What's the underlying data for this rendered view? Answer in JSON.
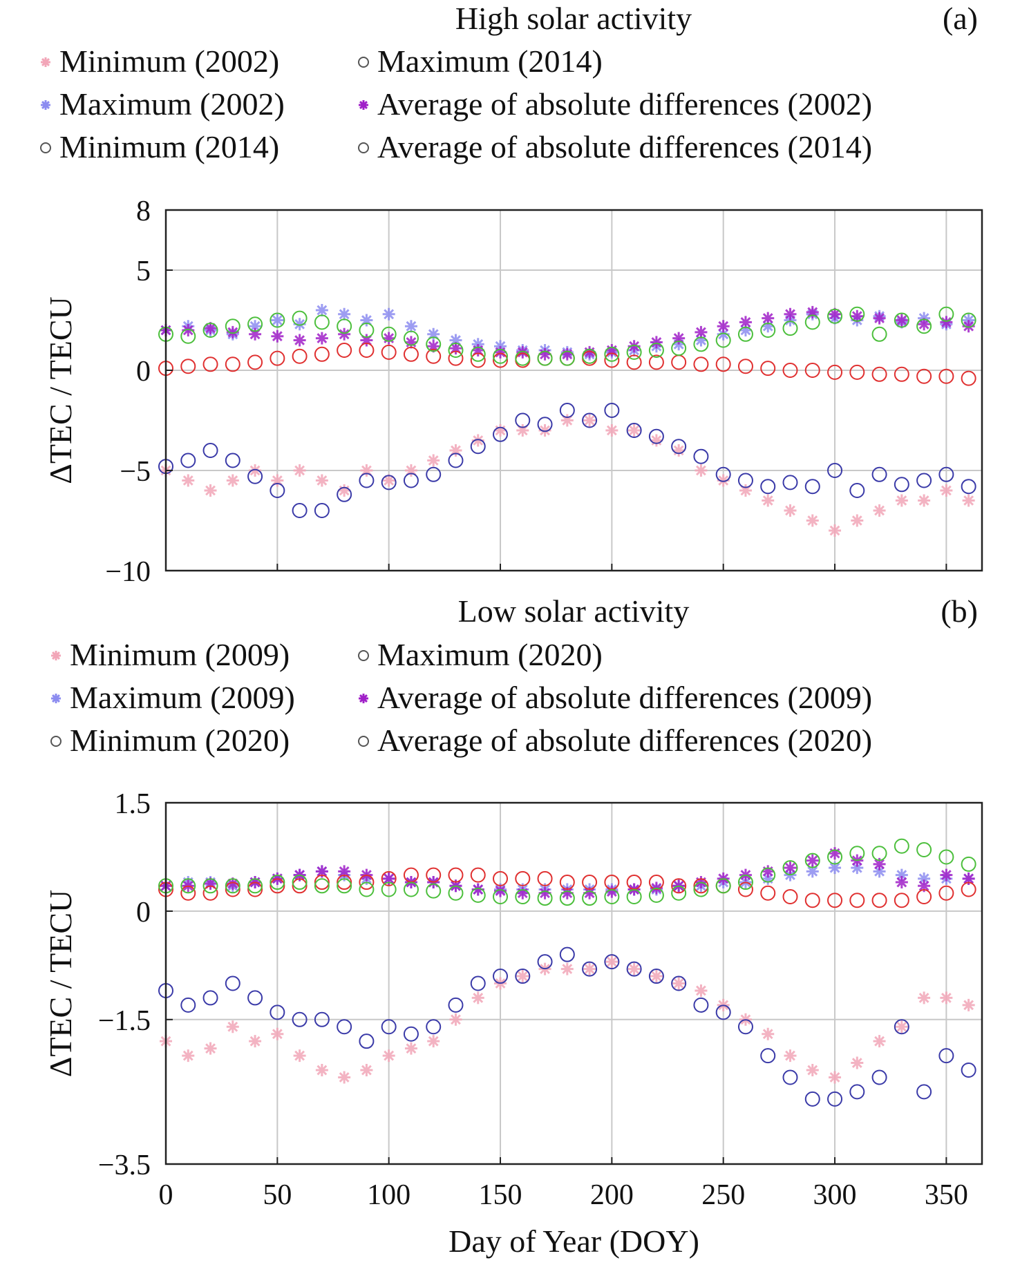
{
  "chart_data": [
    {
      "type": "scatter",
      "title": "High solar activity",
      "panel_label": "(a)",
      "xlabel": "",
      "ylabel": "ΔTEC / TECU",
      "xlim": [
        0,
        366
      ],
      "ylim": [
        -10,
        8
      ],
      "yticks": [
        8,
        5,
        0,
        -5,
        -10
      ],
      "ytick_labels": [
        "8",
        "5",
        "0",
        "−5",
        "−10"
      ],
      "xticks": [
        0,
        50,
        100,
        150,
        200,
        250,
        300,
        350
      ],
      "grid": true,
      "legend_position": "top",
      "x": [
        0,
        10,
        20,
        30,
        40,
        50,
        60,
        70,
        80,
        90,
        100,
        110,
        120,
        130,
        140,
        150,
        160,
        170,
        180,
        190,
        200,
        210,
        220,
        230,
        240,
        250,
        260,
        270,
        280,
        290,
        300,
        310,
        320,
        330,
        340,
        350,
        360
      ],
      "series": [
        {
          "name": "Minimum (2002)",
          "marker": "star",
          "color": "#f2a6b8",
          "values": [
            -5,
            -5.5,
            -6,
            -5.5,
            -5,
            -5.5,
            -5,
            -5.5,
            -6,
            -5,
            -5.5,
            -5,
            -4.5,
            -4,
            -3.5,
            -3,
            -3,
            -3,
            -2.5,
            -2.5,
            -3,
            -3,
            -3.5,
            -4,
            -5,
            -5.5,
            -6,
            -6.5,
            -7,
            -7.5,
            -8,
            -7.5,
            -7,
            -6.5,
            -6.5,
            -6,
            -6.5
          ]
        },
        {
          "name": "Maximum (2002)",
          "marker": "star",
          "color": "#8c8cf0",
          "values": [
            2,
            2.2,
            2,
            1.8,
            2.2,
            2.5,
            2.3,
            3,
            2.8,
            2.5,
            2.8,
            2.2,
            1.8,
            1.5,
            1.3,
            1.2,
            1,
            1,
            0.9,
            0.8,
            0.9,
            1,
            1.2,
            1.3,
            1.5,
            1.8,
            2,
            2.2,
            2.5,
            2.8,
            2.6,
            2.5,
            2.7,
            2.4,
            2.6,
            2.3,
            2.5
          ]
        },
        {
          "name": "Average of absolute differences (2002)",
          "marker": "star",
          "color": "#a020c8",
          "values": [
            2,
            2,
            2.1,
            1.9,
            1.8,
            1.7,
            1.5,
            1.6,
            1.8,
            1.5,
            1.6,
            1.4,
            1.2,
            1.1,
            1,
            0.9,
            0.9,
            0.8,
            0.8,
            0.9,
            1,
            1.2,
            1.4,
            1.6,
            1.9,
            2.2,
            2.4,
            2.6,
            2.8,
            2.9,
            2.8,
            2.7,
            2.6,
            2.5,
            2.3,
            2.4,
            2.2
          ]
        },
        {
          "name": "Minimum (2014)",
          "marker": "circle",
          "color": "#3a3aa8",
          "values": [
            -4.8,
            -4.5,
            -4,
            -4.5,
            -5.3,
            -6,
            -7,
            -7,
            -6.2,
            -5.5,
            -5.6,
            -5.5,
            -5.2,
            -4.5,
            -3.8,
            -3.2,
            -2.5,
            -2.7,
            -2,
            -2.5,
            -2,
            -3,
            -3.3,
            -3.8,
            -4.3,
            -5.2,
            -5.5,
            -5.8,
            -5.6,
            -5.8,
            -5,
            -6,
            -5.2,
            -5.7,
            -5.5,
            -5.2,
            -5.8
          ]
        },
        {
          "name": "Maximum (2014)",
          "marker": "circle",
          "color": "#e03030",
          "values": [
            0.1,
            0.2,
            0.3,
            0.3,
            0.4,
            0.6,
            0.7,
            0.8,
            1,
            1,
            0.9,
            0.8,
            0.7,
            0.6,
            0.5,
            0.5,
            0.5,
            0.6,
            0.6,
            0.6,
            0.5,
            0.4,
            0.4,
            0.4,
            0.3,
            0.3,
            0.2,
            0.1,
            0,
            0,
            -0.1,
            -0.1,
            -0.2,
            -0.2,
            -0.3,
            -0.3,
            -0.4
          ]
        },
        {
          "name": "Average of absolute differences (2014)",
          "marker": "circle",
          "color": "#4cbf3c",
          "values": [
            1.8,
            1.7,
            2,
            2.2,
            2.3,
            2.5,
            2.6,
            2.4,
            2.2,
            2,
            1.8,
            1.6,
            1.3,
            1,
            0.8,
            0.7,
            0.6,
            0.6,
            0.6,
            0.7,
            0.8,
            0.9,
            1,
            1.1,
            1.3,
            1.5,
            1.8,
            2,
            2.1,
            2.4,
            2.7,
            2.8,
            1.8,
            2.5,
            2.2,
            2.8,
            2.5
          ]
        }
      ]
    },
    {
      "type": "scatter",
      "title": "Low solar activity",
      "panel_label": "(b)",
      "xlabel": "Day of Year (DOY)",
      "ylabel": "ΔTEC / TECU",
      "xlim": [
        0,
        366
      ],
      "ylim": [
        -3.5,
        1.5
      ],
      "yticks": [
        1.5,
        0,
        -1.5,
        -3.5
      ],
      "ytick_labels": [
        "1.5",
        "0",
        "−1.5",
        "−3.5"
      ],
      "xticks": [
        0,
        50,
        100,
        150,
        200,
        250,
        300,
        350
      ],
      "xtick_labels": [
        "0",
        "50",
        "100",
        "150",
        "200",
        "250",
        "300",
        "350"
      ],
      "grid": true,
      "legend_position": "top",
      "x": [
        0,
        10,
        20,
        30,
        40,
        50,
        60,
        70,
        80,
        90,
        100,
        110,
        120,
        130,
        140,
        150,
        160,
        170,
        180,
        190,
        200,
        210,
        220,
        230,
        240,
        250,
        260,
        270,
        280,
        290,
        300,
        310,
        320,
        330,
        340,
        350,
        360
      ],
      "series": [
        {
          "name": "Minimum (2009)",
          "marker": "star",
          "color": "#f2a6b8",
          "values": [
            -1.8,
            -2,
            -1.9,
            -1.6,
            -1.8,
            -1.7,
            -2,
            -2.2,
            -2.3,
            -2.2,
            -2,
            -1.9,
            -1.8,
            -1.5,
            -1.2,
            -1,
            -0.9,
            -0.8,
            -0.8,
            -0.8,
            -0.7,
            -0.8,
            -0.9,
            -1,
            -1.1,
            -1.3,
            -1.5,
            -1.7,
            -2,
            -2.2,
            -2.3,
            -2.1,
            -1.8,
            -1.6,
            -1.2,
            -1.2,
            -1.3
          ]
        },
        {
          "name": "Maximum (2009)",
          "marker": "star",
          "color": "#8c8cf0",
          "values": [
            0.35,
            0.4,
            0.4,
            0.35,
            0.4,
            0.45,
            0.5,
            0.55,
            0.5,
            0.45,
            0.45,
            0.4,
            0.4,
            0.35,
            0.3,
            0.3,
            0.3,
            0.3,
            0.3,
            0.3,
            0.3,
            0.3,
            0.3,
            0.35,
            0.35,
            0.4,
            0.4,
            0.45,
            0.5,
            0.55,
            0.6,
            0.6,
            0.55,
            0.5,
            0.45,
            0.45,
            0.45
          ]
        },
        {
          "name": "Average of absolute differences (2009)",
          "marker": "star",
          "color": "#a020c8",
          "values": [
            0.35,
            0.35,
            0.38,
            0.38,
            0.4,
            0.45,
            0.5,
            0.55,
            0.55,
            0.5,
            0.45,
            0.4,
            0.4,
            0.35,
            0.3,
            0.28,
            0.25,
            0.25,
            0.25,
            0.25,
            0.27,
            0.3,
            0.32,
            0.35,
            0.4,
            0.45,
            0.5,
            0.55,
            0.6,
            0.7,
            0.8,
            0.7,
            0.65,
            0.4,
            0.35,
            0.5,
            0.45
          ]
        },
        {
          "name": "Minimum (2020)",
          "marker": "circle",
          "color": "#3a3aa8",
          "values": [
            -1.1,
            -1.3,
            -1.2,
            -1,
            -1.2,
            -1.4,
            -1.5,
            -1.5,
            -1.6,
            -1.8,
            -1.6,
            -1.7,
            -1.6,
            -1.3,
            -1,
            -0.9,
            -0.9,
            -0.7,
            -0.6,
            -0.8,
            -0.7,
            -0.8,
            -0.9,
            -1,
            -1.3,
            -1.4,
            -1.6,
            -2,
            -2.3,
            -2.6,
            -2.6,
            -2.5,
            -2.3,
            -1.6,
            -2.5,
            -2,
            -2.2
          ]
        },
        {
          "name": "Maximum (2020)",
          "marker": "circle",
          "color": "#e03030",
          "values": [
            0.3,
            0.25,
            0.25,
            0.3,
            0.3,
            0.35,
            0.35,
            0.4,
            0.4,
            0.4,
            0.45,
            0.5,
            0.5,
            0.5,
            0.5,
            0.45,
            0.45,
            0.45,
            0.4,
            0.4,
            0.4,
            0.4,
            0.4,
            0.35,
            0.35,
            0.35,
            0.3,
            0.25,
            0.2,
            0.15,
            0.15,
            0.15,
            0.15,
            0.15,
            0.2,
            0.25,
            0.3
          ]
        },
        {
          "name": "Average of absolute differences (2020)",
          "marker": "circle",
          "color": "#4cbf3c",
          "values": [
            0.35,
            0.35,
            0.35,
            0.35,
            0.35,
            0.4,
            0.4,
            0.35,
            0.35,
            0.3,
            0.3,
            0.3,
            0.28,
            0.25,
            0.22,
            0.2,
            0.2,
            0.18,
            0.18,
            0.18,
            0.2,
            0.2,
            0.22,
            0.25,
            0.3,
            0.35,
            0.4,
            0.5,
            0.6,
            0.7,
            0.75,
            0.8,
            0.8,
            0.9,
            0.85,
            0.75,
            0.65
          ]
        }
      ]
    }
  ]
}
